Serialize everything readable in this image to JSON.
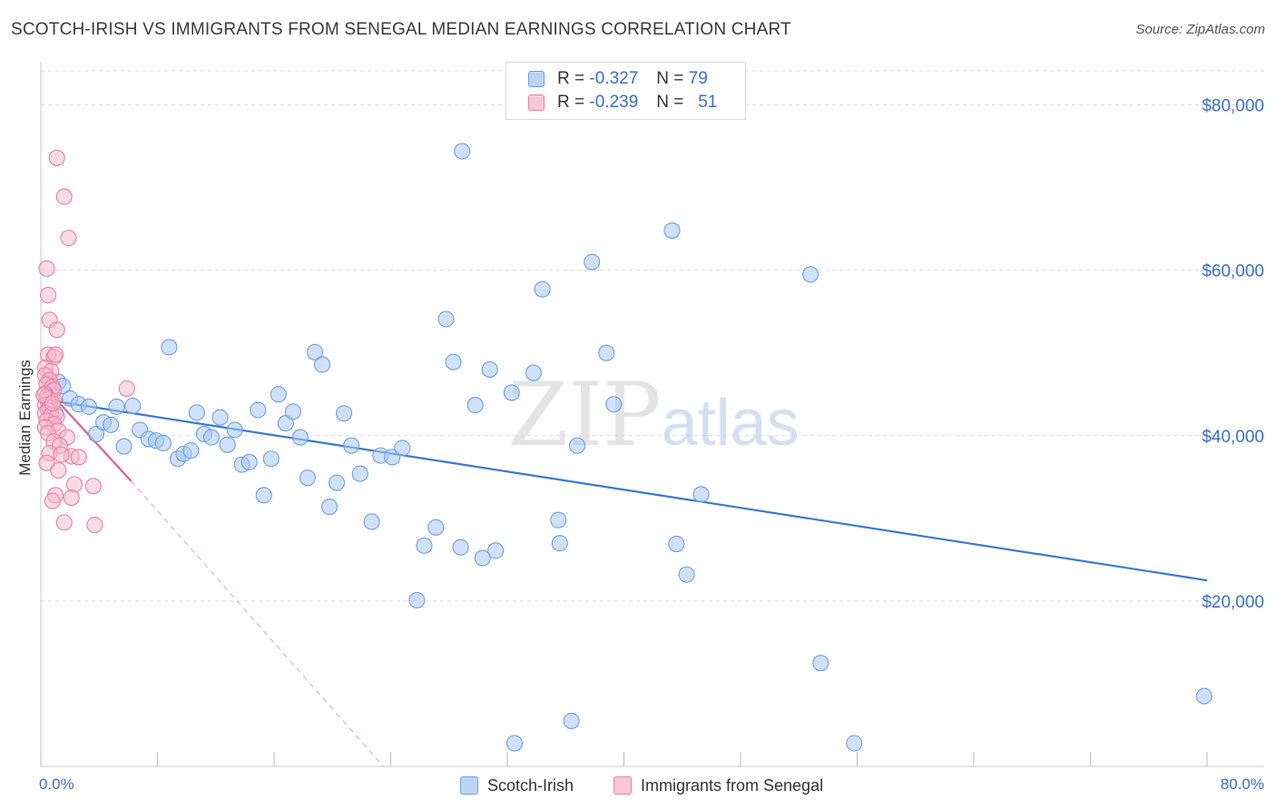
{
  "header": {
    "title": "SCOTCH-IRISH VS IMMIGRANTS FROM SENEGAL MEDIAN EARNINGS CORRELATION CHART",
    "source": "Source: ZipAtlas.com"
  },
  "legend": {
    "rows": [
      {
        "r_label": "R =",
        "r_value": "-0.327",
        "n_label": "N =",
        "n_value": "79"
      },
      {
        "r_label": "R =",
        "r_value": "-0.239",
        "n_label": "N =",
        "n_value": "51"
      }
    ]
  },
  "bottom_legend": [
    "Scotch-Irish",
    "Immigrants from Senegal"
  ],
  "colors": {
    "blue_fill": "#a9c8f0",
    "blue_stroke": "#6f9fe0",
    "blue_line": "#3a78d4",
    "pink_fill": "#f6b8cb",
    "pink_stroke": "#e87fa2",
    "pink_line": "#e0628f",
    "tick_text": "#3a6fc4",
    "grid": "#dcdcdc"
  },
  "chart_data": {
    "type": "scatter",
    "title": "SCOTCH-IRISH VS IMMIGRANTS FROM SENEGAL MEDIAN EARNINGS CORRELATION CHART",
    "xlabel": "",
    "ylabel": "Median Earnings",
    "xlim": [
      0,
      80
    ],
    "ylim": [
      0,
      85000
    ],
    "x_tick_labels": [
      "0.0%",
      "80.0%"
    ],
    "y_ticks": [
      20000,
      40000,
      60000,
      80000
    ],
    "y_tick_labels": [
      "$20,000",
      "$40,000",
      "$60,000",
      "$80,000"
    ],
    "grid": true,
    "watermark": "ZIPatlas",
    "series": [
      {
        "name": "Scotch-Irish",
        "R": -0.327,
        "N": 79,
        "trend": {
          "x": [
            0.5,
            80
          ],
          "y": [
            44300,
            22500
          ]
        },
        "points": [
          [
            0.8,
            45500
          ],
          [
            1.2,
            46500
          ],
          [
            1.5,
            46000
          ],
          [
            2,
            44500
          ],
          [
            2.6,
            43800
          ],
          [
            3.3,
            43500
          ],
          [
            3.8,
            40200
          ],
          [
            4.3,
            41600
          ],
          [
            4.8,
            41300
          ],
          [
            5.2,
            43500
          ],
          [
            5.7,
            38700
          ],
          [
            6.3,
            43600
          ],
          [
            6.8,
            40700
          ],
          [
            7.4,
            39600
          ],
          [
            7.9,
            39400
          ],
          [
            8.4,
            39100
          ],
          [
            8.8,
            50700
          ],
          [
            9.4,
            37200
          ],
          [
            9.8,
            37800
          ],
          [
            10.3,
            38200
          ],
          [
            10.7,
            42800
          ],
          [
            11.2,
            40200
          ],
          [
            11.7,
            39800
          ],
          [
            12.3,
            42200
          ],
          [
            12.8,
            38900
          ],
          [
            13.3,
            40700
          ],
          [
            13.8,
            36500
          ],
          [
            14.3,
            36800
          ],
          [
            14.9,
            43100
          ],
          [
            15.3,
            32800
          ],
          [
            15.8,
            37200
          ],
          [
            16.3,
            45000
          ],
          [
            16.8,
            41500
          ],
          [
            17.3,
            42900
          ],
          [
            17.8,
            39800
          ],
          [
            18.3,
            34900
          ],
          [
            18.8,
            50100
          ],
          [
            19.3,
            48600
          ],
          [
            19.8,
            31400
          ],
          [
            20.3,
            34300
          ],
          [
            20.8,
            42700
          ],
          [
            21.3,
            38800
          ],
          [
            21.9,
            35400
          ],
          [
            22.7,
            29600
          ],
          [
            23.3,
            37600
          ],
          [
            24.1,
            37400
          ],
          [
            24.8,
            38500
          ],
          [
            25.8,
            20100
          ],
          [
            26.3,
            26700
          ],
          [
            27.1,
            28900
          ],
          [
            27.8,
            54100
          ],
          [
            28.3,
            48900
          ],
          [
            28.8,
            26500
          ],
          [
            28.9,
            74400
          ],
          [
            29.8,
            43700
          ],
          [
            30.3,
            25200
          ],
          [
            30.8,
            48000
          ],
          [
            31.2,
            26100
          ],
          [
            32.3,
            45200
          ],
          [
            32.5,
            2800
          ],
          [
            33.8,
            47600
          ],
          [
            34.4,
            57700
          ],
          [
            35.5,
            29800
          ],
          [
            35.6,
            27000
          ],
          [
            36.4,
            5500
          ],
          [
            36.8,
            38800
          ],
          [
            37.8,
            61000
          ],
          [
            38.8,
            50000
          ],
          [
            39.3,
            43800
          ],
          [
            43.3,
            64800
          ],
          [
            43.6,
            26900
          ],
          [
            44.3,
            23200
          ],
          [
            45.3,
            32900
          ],
          [
            52.8,
            59500
          ],
          [
            53.5,
            12500
          ],
          [
            55.8,
            2800
          ],
          [
            79.8,
            8500
          ],
          [
            0.5,
            44000
          ],
          [
            1.0,
            42700
          ]
        ]
      },
      {
        "name": "Immigrants from Senegal",
        "R": -0.239,
        "N": 51,
        "trend_solid": {
          "x": [
            0.2,
            6.2
          ],
          "y": [
            46000,
            34500
          ]
        },
        "trend_dashed": {
          "x": [
            6.2,
            23.5
          ],
          "y": [
            34500,
            0
          ]
        },
        "points": [
          [
            1.1,
            73600
          ],
          [
            1.6,
            68900
          ],
          [
            1.9,
            63900
          ],
          [
            0.4,
            60200
          ],
          [
            0.5,
            57000
          ],
          [
            0.6,
            54000
          ],
          [
            1.1,
            52800
          ],
          [
            0.5,
            49800
          ],
          [
            0.9,
            49500
          ],
          [
            1.0,
            49800
          ],
          [
            0.3,
            48200
          ],
          [
            0.7,
            47800
          ],
          [
            0.3,
            47300
          ],
          [
            0.6,
            46700
          ],
          [
            0.4,
            46200
          ],
          [
            0.8,
            45900
          ],
          [
            0.9,
            45500
          ],
          [
            0.3,
            45100
          ],
          [
            0.4,
            44700
          ],
          [
            0.5,
            44400
          ],
          [
            0.9,
            44200
          ],
          [
            0.3,
            43700
          ],
          [
            0.6,
            43400
          ],
          [
            0.5,
            43100
          ],
          [
            0.3,
            42700
          ],
          [
            0.7,
            42500
          ],
          [
            1.1,
            42300
          ],
          [
            0.4,
            41800
          ],
          [
            0.9,
            41400
          ],
          [
            0.3,
            41000
          ],
          [
            1.2,
            40600
          ],
          [
            0.5,
            40300
          ],
          [
            1.8,
            39800
          ],
          [
            0.9,
            39300
          ],
          [
            1.3,
            38800
          ],
          [
            0.6,
            37900
          ],
          [
            2.1,
            37500
          ],
          [
            2.6,
            37400
          ],
          [
            0.4,
            36700
          ],
          [
            1.2,
            35800
          ],
          [
            2.3,
            34100
          ],
          [
            3.6,
            33900
          ],
          [
            1.0,
            32800
          ],
          [
            2.1,
            32500
          ],
          [
            0.8,
            32100
          ],
          [
            1.6,
            29500
          ],
          [
            3.7,
            29200
          ],
          [
            5.9,
            45700
          ],
          [
            1.4,
            37700
          ],
          [
            0.2,
            44900
          ],
          [
            0.8,
            43900
          ]
        ]
      }
    ]
  }
}
